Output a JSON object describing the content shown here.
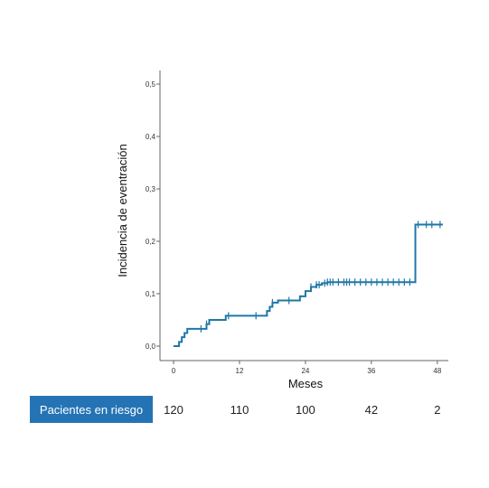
{
  "chart_data": {
    "type": "line",
    "step": true,
    "title": "",
    "xlabel": "Meses",
    "ylabel": "Incidencia de eventración",
    "xlim": [
      0,
      50
    ],
    "ylim": [
      0,
      0.5
    ],
    "x_ticks": [
      0,
      12,
      24,
      36,
      48
    ],
    "x_tick_labels": [
      "0",
      "12",
      "24",
      "36",
      "48"
    ],
    "y_ticks": [
      0,
      0.1,
      0.2,
      0.3,
      0.4,
      0.5
    ],
    "y_tick_labels": [
      "0,0",
      "0,1",
      "0,2",
      "0,3",
      "0,4",
      "0,5"
    ],
    "grid": false,
    "series": [
      {
        "color": "#1f77a8",
        "x": [
          0,
          1,
          1.5,
          2,
          2.5,
          6,
          6.5,
          9.5,
          15,
          17,
          17.5,
          18,
          18.5,
          19,
          23,
          24,
          25,
          26,
          27,
          28,
          43.5,
          44,
          49
        ],
        "y": [
          0,
          0.008,
          0.017,
          0.025,
          0.033,
          0.042,
          0.05,
          0.058,
          0.058,
          0.067,
          0.075,
          0.083,
          0.083,
          0.087,
          0.095,
          0.105,
          0.113,
          0.117,
          0.12,
          0.122,
          0.122,
          0.232,
          0.232
        ],
        "censored": [
          5,
          6,
          10,
          15,
          18,
          21,
          25,
          26,
          26.5,
          27.5,
          28,
          28.5,
          29,
          30,
          31,
          31.5,
          32,
          33,
          34,
          35,
          36,
          37,
          38,
          39,
          40,
          41,
          42,
          43,
          44.5,
          46,
          47,
          48.5
        ]
      }
    ]
  },
  "risk_table": {
    "label": "Pacientes en riesgo",
    "label_bg": "#2474b5",
    "values": [
      "120",
      "110",
      "100",
      "42",
      "2"
    ],
    "times": [
      0,
      12,
      24,
      36,
      48
    ]
  }
}
